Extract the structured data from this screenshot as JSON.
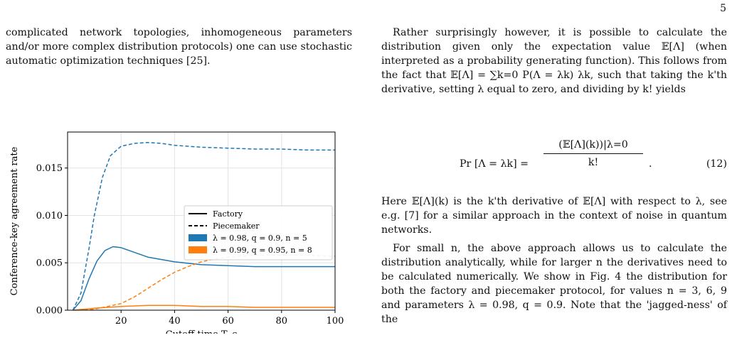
{
  "page": {
    "number": "5"
  },
  "left_text": "complicated network topologies, inhomogeneous parameters and/or more complex distribution protocols) one can use stochastic automatic optimization techniques [25].",
  "right_text": {
    "para1": "Rather surprisingly however, it is possible to calculate the distribution given only the expectation value 𝔼[Λ] (when interpreted as a probability generating function). This follows from the fact that 𝔼[Λ] = ∑k=0 P(Λ = λk) λk, such that taking the k'th derivative, setting λ equal to zero, and dividing by k! yields",
    "equation": {
      "lhs": "Pr [Λ = λk] =",
      "numerator": "(𝔼[Λ](k))|λ=0",
      "denominator": "k!",
      "trail": ".",
      "number": "(12)"
    },
    "para2": "Here 𝔼[Λ](k) is the k'th derivative of 𝔼[Λ] with respect to λ, see e.g. [7] for a similar approach in the context of noise in quantum networks.",
    "para3": "For small n, the above approach allows us to calculate the distribution analytically, while for larger n the derivatives need to be calculated numerically. We show in Fig. 4 the distribution for both the factory and piecemaker protocol, for values n = 3, 6, 9 and parameters λ = 0.98, q = 0.9. Note that the 'jagged-ness' of the"
  },
  "chart_data": {
    "type": "line",
    "xlabel": "Cutoff time T_c",
    "ylabel": "Conference-key agreement rate",
    "xlim": [
      0,
      100
    ],
    "ylim": [
      0,
      0.0188
    ],
    "xticks": [
      20,
      40,
      60,
      80,
      100
    ],
    "yticks": [
      0.0,
      0.005,
      0.01,
      0.015
    ],
    "ytick_labels": [
      "0.000",
      "0.005",
      "0.010",
      "0.015"
    ],
    "grid": true,
    "legend_position": "center-right",
    "legend": [
      {
        "label": "Factory",
        "style": "solid",
        "color": "#000000"
      },
      {
        "label": "Piecemaker",
        "style": "dashed",
        "color": "#000000"
      },
      {
        "label": "λ = 0.98, q = 0.9, n = 5",
        "style": "patch",
        "color": "#1f77b4"
      },
      {
        "label": "λ = 0.99, q = 0.95, n = 8",
        "style": "patch",
        "color": "#ff7f0e"
      }
    ],
    "series": [
      {
        "protocol": "Piecemaker",
        "params": "λ = 0.98, q = 0.9, n = 5",
        "color": "#1f77b4",
        "dash": true,
        "x": [
          2,
          5,
          8,
          10,
          13,
          16,
          20,
          25,
          30,
          35,
          40,
          50,
          60,
          70,
          80,
          90,
          100
        ],
        "y": [
          0.0,
          0.0018,
          0.0065,
          0.01,
          0.014,
          0.0163,
          0.0173,
          0.0176,
          0.0177,
          0.0176,
          0.0174,
          0.0172,
          0.0171,
          0.017,
          0.017,
          0.0169,
          0.0169
        ]
      },
      {
        "protocol": "Factory",
        "params": "λ = 0.98, q = 0.9, n = 5",
        "color": "#1f77b4",
        "dash": false,
        "x": [
          2,
          5,
          8,
          11,
          14,
          17,
          20,
          25,
          30,
          40,
          50,
          60,
          70,
          80,
          90,
          100
        ],
        "y": [
          0.0,
          0.001,
          0.0033,
          0.0052,
          0.0063,
          0.0067,
          0.0066,
          0.0061,
          0.0056,
          0.0051,
          0.0048,
          0.0047,
          0.0046,
          0.0046,
          0.0046,
          0.0046
        ]
      },
      {
        "protocol": "Piecemaker",
        "params": "λ = 0.99, q = 0.95, n = 8",
        "color": "#ff7f0e",
        "dash": true,
        "x": [
          2,
          10,
          20,
          25,
          30,
          35,
          40,
          45,
          50,
          55,
          60,
          65,
          70,
          80,
          90,
          100
        ],
        "y": [
          0.0,
          0.0001,
          0.0007,
          0.0014,
          0.0023,
          0.0032,
          0.004,
          0.0046,
          0.0051,
          0.0054,
          0.0056,
          0.0057,
          0.0058,
          0.0058,
          0.0058,
          0.0057
        ]
      },
      {
        "protocol": "Factory",
        "params": "λ = 0.99, q = 0.95, n = 8",
        "color": "#ff7f0e",
        "dash": false,
        "x": [
          2,
          10,
          20,
          30,
          35,
          40,
          50,
          60,
          70,
          80,
          90,
          100
        ],
        "y": [
          0.0,
          0.0002,
          0.0004,
          0.0005,
          0.0005,
          0.0005,
          0.0004,
          0.0004,
          0.0003,
          0.0003,
          0.0003,
          0.0003
        ]
      }
    ]
  }
}
